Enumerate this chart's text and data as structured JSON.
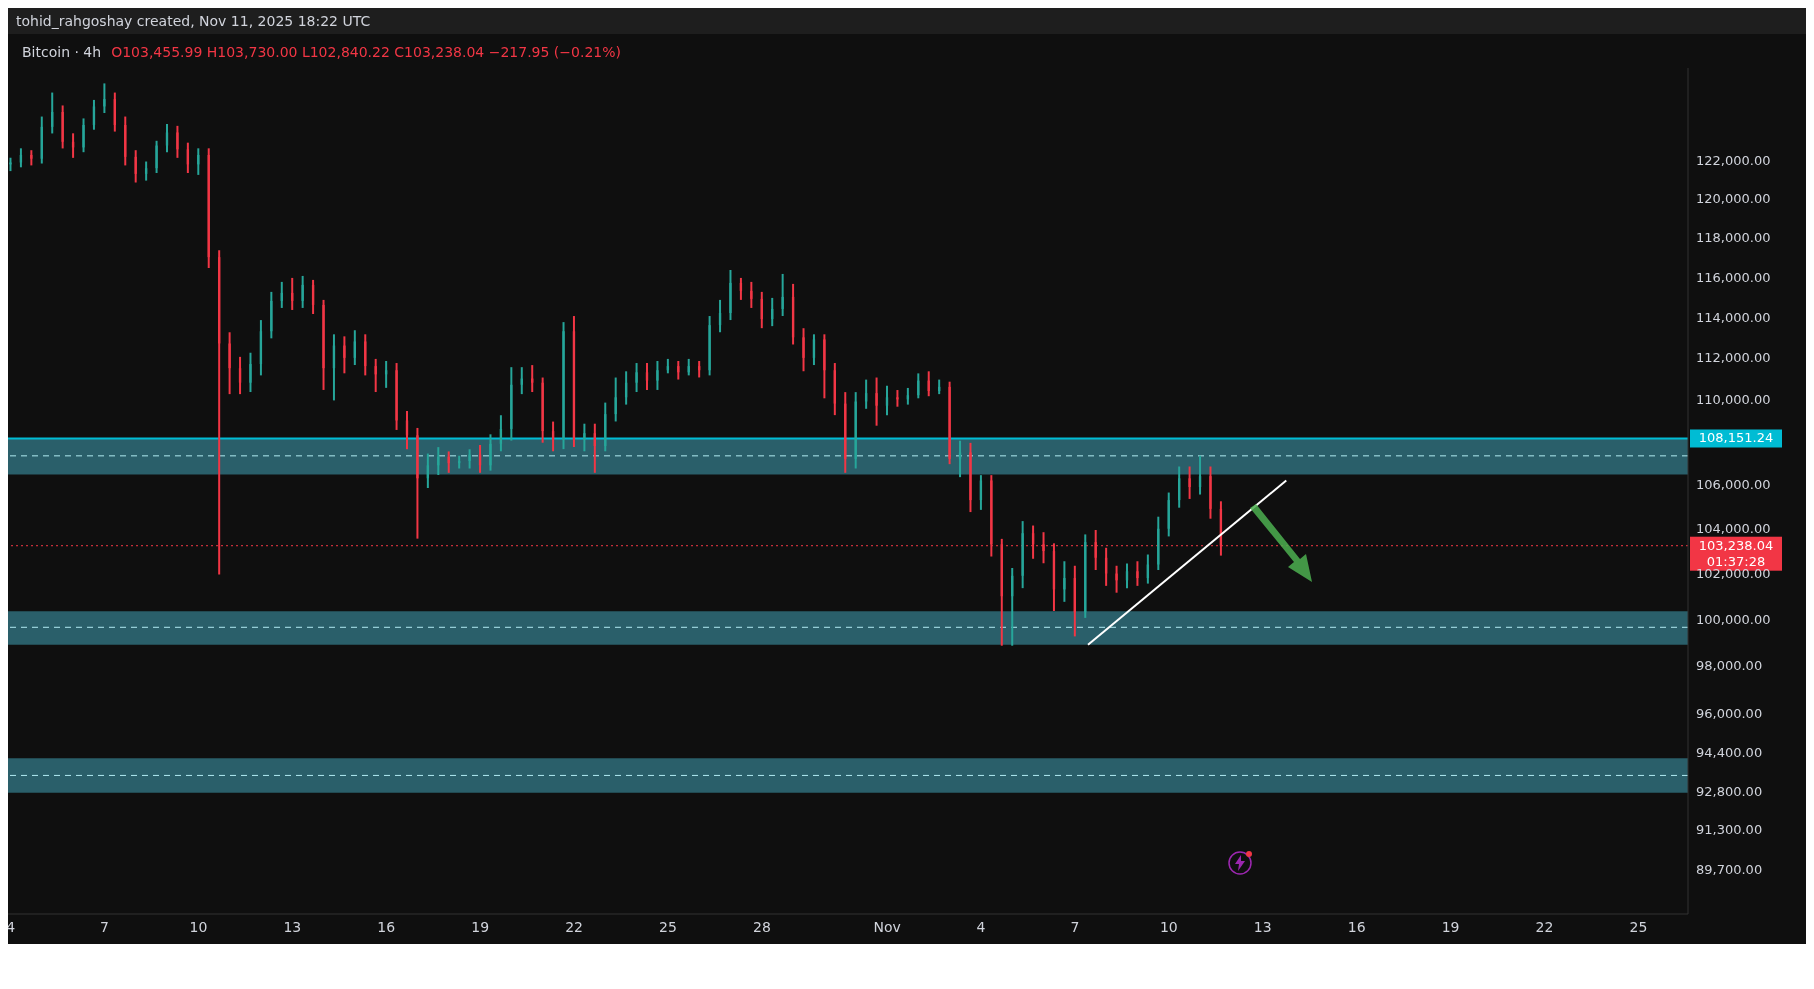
{
  "chart_data": {
    "type": "candlestick",
    "title": "Bitcoin · 4h",
    "subtitle": "O103,455.99 H103,730.00 L102,840.22 C103,238.04 −217.95 (−0.21%)",
    "annotations": [
      "tohid_rahgoshay created, Nov 11, 2025 18:22 UTC",
      "01:37:28"
    ],
    "x": [
      "2025-10-04T00:00",
      "2025-10-04T08:00",
      "2025-10-04T16:00",
      "2025-10-05T00:00",
      "2025-10-05T08:00",
      "2025-10-05T16:00",
      "2025-10-06T00:00",
      "2025-10-06T08:00",
      "2025-10-06T16:00",
      "2025-10-07T00:00",
      "2025-10-07T08:00",
      "2025-10-07T16:00",
      "2025-10-08T00:00",
      "2025-10-08T08:00",
      "2025-10-08T16:00",
      "2025-10-09T00:00",
      "2025-10-09T08:00",
      "2025-10-09T16:00",
      "2025-10-10T00:00",
      "2025-10-10T08:00",
      "2025-10-10T16:00",
      "2025-10-11T00:00",
      "2025-10-11T08:00",
      "2025-10-11T16:00",
      "2025-10-12T00:00",
      "2025-10-12T08:00",
      "2025-10-12T16:00",
      "2025-10-13T00:00",
      "2025-10-13T08:00",
      "2025-10-13T16:00",
      "2025-10-14T00:00",
      "2025-10-14T08:00",
      "2025-10-14T16:00",
      "2025-10-15T00:00",
      "2025-10-15T08:00",
      "2025-10-15T16:00",
      "2025-10-16T00:00",
      "2025-10-16T08:00",
      "2025-10-16T16:00",
      "2025-10-17T00:00",
      "2025-10-17T08:00",
      "2025-10-17T16:00",
      "2025-10-18T00:00",
      "2025-10-18T08:00",
      "2025-10-18T16:00",
      "2025-10-19T00:00",
      "2025-10-19T08:00",
      "2025-10-19T16:00",
      "2025-10-20T00:00",
      "2025-10-20T08:00",
      "2025-10-20T16:00",
      "2025-10-21T00:00",
      "2025-10-21T08:00",
      "2025-10-21T16:00",
      "2025-10-22T00:00",
      "2025-10-22T08:00",
      "2025-10-22T16:00",
      "2025-10-23T00:00",
      "2025-10-23T08:00",
      "2025-10-23T16:00",
      "2025-10-24T00:00",
      "2025-10-24T08:00",
      "2025-10-24T16:00",
      "2025-10-25T00:00",
      "2025-10-25T08:00",
      "2025-10-25T16:00",
      "2025-10-26T00:00",
      "2025-10-26T08:00",
      "2025-10-26T16:00",
      "2025-10-27T00:00",
      "2025-10-27T08:00",
      "2025-10-27T16:00",
      "2025-10-28T00:00",
      "2025-10-28T08:00",
      "2025-10-28T16:00",
      "2025-10-29T00:00",
      "2025-10-29T08:00",
      "2025-10-29T16:00",
      "2025-10-30T00:00",
      "2025-10-30T08:00",
      "2025-10-30T16:00",
      "2025-10-31T00:00",
      "2025-10-31T08:00",
      "2025-10-31T16:00",
      "2025-11-01T00:00",
      "2025-11-01T08:00",
      "2025-11-01T16:00",
      "2025-11-02T00:00",
      "2025-11-02T08:00",
      "2025-11-02T16:00",
      "2025-11-03T00:00",
      "2025-11-03T08:00",
      "2025-11-03T16:00",
      "2025-11-04T00:00",
      "2025-11-04T08:00",
      "2025-11-04T16:00",
      "2025-11-05T00:00",
      "2025-11-05T08:00",
      "2025-11-05T16:00",
      "2025-11-06T00:00",
      "2025-11-06T08:00",
      "2025-11-06T16:00",
      "2025-11-07T00:00",
      "2025-11-07T08:00",
      "2025-11-07T16:00",
      "2025-11-08T00:00",
      "2025-11-08T08:00",
      "2025-11-08T16:00",
      "2025-11-09T00:00",
      "2025-11-09T08:00",
      "2025-11-09T16:00",
      "2025-11-10T00:00",
      "2025-11-10T08:00",
      "2025-11-10T16:00",
      "2025-11-11T00:00",
      "2025-11-11T08:00",
      "2025-11-11T16:00"
    ],
    "ohlc": [
      [
        121800,
        122100,
        121500,
        121900
      ],
      [
        121900,
        122600,
        121700,
        122300
      ],
      [
        122300,
        122500,
        121800,
        122100
      ],
      [
        122100,
        124300,
        121900,
        123800
      ],
      [
        123800,
        125600,
        123500,
        124600
      ],
      [
        124600,
        124900,
        122700,
        123000
      ],
      [
        123000,
        123400,
        122200,
        122700
      ],
      [
        122700,
        124200,
        122500,
        123900
      ],
      [
        123900,
        125200,
        123700,
        124900
      ],
      [
        124900,
        126100,
        124600,
        125300
      ],
      [
        125300,
        125600,
        123600,
        123900
      ],
      [
        123900,
        124300,
        121800,
        122200
      ],
      [
        122200,
        122500,
        120900,
        121300
      ],
      [
        121300,
        121900,
        121000,
        121600
      ],
      [
        121600,
        123000,
        121400,
        122800
      ],
      [
        122800,
        123900,
        122500,
        123500
      ],
      [
        123500,
        123800,
        122200,
        122600
      ],
      [
        122600,
        122900,
        121400,
        121800
      ],
      [
        121800,
        122600,
        121300,
        122300
      ],
      [
        122300,
        122600,
        116500,
        117000
      ],
      [
        117000,
        117300,
        102000,
        112700
      ],
      [
        112700,
        113200,
        110300,
        111500
      ],
      [
        111500,
        112000,
        110300,
        110800
      ],
      [
        110800,
        112200,
        110400,
        111700
      ],
      [
        111700,
        113800,
        111200,
        113300
      ],
      [
        113300,
        115200,
        113000,
        114800
      ],
      [
        114800,
        115700,
        114500,
        115200
      ],
      [
        115200,
        115900,
        114400,
        114800
      ],
      [
        114800,
        116000,
        114500,
        115600
      ],
      [
        115600,
        115800,
        114200,
        114600
      ],
      [
        114600,
        114800,
        110500,
        111500
      ],
      [
        111500,
        113100,
        110000,
        112600
      ],
      [
        112600,
        113000,
        111300,
        112000
      ],
      [
        112000,
        113300,
        111700,
        112800
      ],
      [
        112800,
        113100,
        111200,
        111600
      ],
      [
        111600,
        111900,
        110400,
        111200
      ],
      [
        111200,
        111800,
        110600,
        111400
      ],
      [
        111400,
        111700,
        108600,
        109000
      ],
      [
        109000,
        109400,
        107700,
        108300
      ],
      [
        108300,
        108600,
        103600,
        106300
      ],
      [
        106300,
        107400,
        105900,
        106900
      ],
      [
        106900,
        107700,
        106500,
        107300
      ],
      [
        107300,
        107500,
        106600,
        107000
      ],
      [
        107000,
        107300,
        106800,
        107100
      ],
      [
        107100,
        107600,
        106800,
        107400
      ],
      [
        107400,
        107800,
        106600,
        106900
      ],
      [
        106900,
        108300,
        106700,
        107900
      ],
      [
        107900,
        109200,
        107600,
        108600
      ],
      [
        108600,
        111500,
        108100,
        110700
      ],
      [
        110700,
        111500,
        110300,
        111000
      ],
      [
        111000,
        111600,
        110400,
        110800
      ],
      [
        110800,
        111000,
        108000,
        108500
      ],
      [
        108500,
        108900,
        107600,
        108100
      ],
      [
        108100,
        113700,
        107700,
        113300
      ],
      [
        113300,
        114000,
        107800,
        108100
      ],
      [
        108100,
        108800,
        107600,
        108400
      ],
      [
        108400,
        108800,
        106600,
        107800
      ],
      [
        107800,
        109800,
        107600,
        109300
      ],
      [
        109300,
        111000,
        109000,
        110100
      ],
      [
        110100,
        111300,
        109800,
        110800
      ],
      [
        110800,
        111700,
        110400,
        111300
      ],
      [
        111300,
        111700,
        110500,
        110900
      ],
      [
        110900,
        111800,
        110500,
        111400
      ],
      [
        111400,
        111900,
        111300,
        111600
      ],
      [
        111600,
        111800,
        111000,
        111300
      ],
      [
        111300,
        111900,
        111200,
        111600
      ],
      [
        111600,
        111800,
        111100,
        111400
      ],
      [
        111400,
        114000,
        111200,
        113600
      ],
      [
        113600,
        114800,
        113300,
        114200
      ],
      [
        114200,
        116300,
        113900,
        115700
      ],
      [
        115700,
        115900,
        114900,
        115300
      ],
      [
        115300,
        115700,
        114500,
        114900
      ],
      [
        114900,
        115200,
        113500,
        113900
      ],
      [
        113900,
        114900,
        113600,
        114400
      ],
      [
        114400,
        116100,
        114100,
        115000
      ],
      [
        115000,
        115600,
        112700,
        113000
      ],
      [
        113000,
        113400,
        111400,
        112000
      ],
      [
        112000,
        113100,
        111700,
        112900
      ],
      [
        112900,
        113100,
        110100,
        111400
      ],
      [
        111400,
        111700,
        109300,
        109800
      ],
      [
        109800,
        110300,
        106600,
        107200
      ],
      [
        107200,
        110300,
        106800,
        109900
      ],
      [
        109900,
        110900,
        109600,
        110300
      ],
      [
        110300,
        111000,
        108800,
        109700
      ],
      [
        109700,
        110600,
        109300,
        110100
      ],
      [
        110100,
        110400,
        109700,
        110000
      ],
      [
        110000,
        110500,
        109800,
        110200
      ],
      [
        110200,
        111200,
        110100,
        110900
      ],
      [
        110900,
        111300,
        110200,
        110400
      ],
      [
        110400,
        110900,
        110300,
        110600
      ],
      [
        110600,
        110800,
        107000,
        107200
      ],
      [
        107200,
        108000,
        106400,
        107500
      ],
      [
        107500,
        107900,
        104800,
        105300
      ],
      [
        105300,
        106400,
        104900,
        106200
      ],
      [
        106200,
        106400,
        102800,
        103300
      ],
      [
        103300,
        103500,
        98900,
        101000
      ],
      [
        101000,
        102200,
        98900,
        101900
      ],
      [
        101900,
        104300,
        101400,
        103800
      ],
      [
        103800,
        104100,
        102700,
        103300
      ],
      [
        103300,
        103800,
        102500,
        103000
      ],
      [
        103000,
        103300,
        100400,
        101300
      ],
      [
        101300,
        102500,
        100800,
        101800
      ],
      [
        101800,
        102300,
        99300,
        100300
      ],
      [
        100300,
        103700,
        100100,
        103400
      ],
      [
        103400,
        103900,
        102200,
        102700
      ],
      [
        102700,
        103100,
        101500,
        102000
      ],
      [
        102000,
        102300,
        101200,
        101700
      ],
      [
        101700,
        102400,
        101400,
        102100
      ],
      [
        102100,
        102500,
        101500,
        101800
      ],
      [
        101800,
        102800,
        101600,
        102400
      ],
      [
        102400,
        104500,
        102200,
        104000
      ],
      [
        104000,
        105600,
        103700,
        105300
      ],
      [
        105300,
        106800,
        105000,
        106300
      ],
      [
        106300,
        106800,
        105400,
        105900
      ],
      [
        105900,
        107300,
        105600,
        106400
      ],
      [
        106400,
        106800,
        104500,
        104900
      ],
      [
        104900,
        105200,
        102840.22,
        103238.04
      ]
    ],
    "series": [
      {
        "type": "line",
        "x": [
          "2025-11-07T10:00",
          "2025-11-13T18:00"
        ],
        "values": [
          98900,
          106200
        ],
        "color": "#ffffff"
      }
    ],
    "log": true,
    "ylim": [
      88000,
      127000
    ],
    "yticks": [
      {
        "value": 89700,
        "label": "89,700.00"
      },
      {
        "value": 91300,
        "label": "91,300.00"
      },
      {
        "value": 92800,
        "label": "92,800.00"
      },
      {
        "value": 94400,
        "label": "94,400.00"
      },
      {
        "value": 96000,
        "label": "96,000.00"
      },
      {
        "value": 98000,
        "label": "98,000.00"
      },
      {
        "value": 100000,
        "label": "100,000.00"
      },
      {
        "value": 102000,
        "label": "102,000.00"
      },
      {
        "value": 104000,
        "label": "104,000.00"
      },
      {
        "value": 106000,
        "label": "106,000.00"
      },
      {
        "value": 110000,
        "label": "110,000.00"
      },
      {
        "value": 112000,
        "label": "112,000.00"
      },
      {
        "value": 114000,
        "label": "114,000.00"
      },
      {
        "value": 116000,
        "label": "116,000.00"
      },
      {
        "value": 118000,
        "label": "118,000.00"
      },
      {
        "value": 120000,
        "label": "120,000.00"
      },
      {
        "value": 122000,
        "label": "122,000.00"
      }
    ],
    "xlim": [
      "2025-10-03T22:00",
      "2025-11-26T14:00"
    ],
    "xticks": [
      {
        "value": "2025-10-04",
        "label": "4"
      },
      {
        "value": "2025-10-07",
        "label": "7"
      },
      {
        "value": "2025-10-10",
        "label": "10"
      },
      {
        "value": "2025-10-13",
        "label": "13"
      },
      {
        "value": "2025-10-16",
        "label": "16"
      },
      {
        "value": "2025-10-19",
        "label": "19"
      },
      {
        "value": "2025-10-22",
        "label": "22"
      },
      {
        "value": "2025-10-25",
        "label": "25"
      },
      {
        "value": "2025-10-28",
        "label": "28"
      },
      {
        "value": "2025-11-01",
        "label": "Nov"
      },
      {
        "value": "2025-11-04",
        "label": "4"
      },
      {
        "value": "2025-11-07",
        "label": "7"
      },
      {
        "value": "2025-11-10",
        "label": "10"
      },
      {
        "value": "2025-11-13",
        "label": "13"
      },
      {
        "value": "2025-11-16",
        "label": "16"
      },
      {
        "value": "2025-11-19",
        "label": "19"
      },
      {
        "value": "2025-11-22",
        "label": "22"
      },
      {
        "value": "2025-11-25",
        "label": "25"
      }
    ],
    "bands": [
      {
        "axis": "y",
        "from": 106480,
        "to": 108151.24,
        "color": "#2a5f6a"
      },
      {
        "axis": "y",
        "from": 98900,
        "to": 100350,
        "color": "#2a5f6a"
      },
      {
        "axis": "y",
        "from": 92750,
        "to": 94150,
        "color": "#2a5f6a"
      }
    ],
    "ref_lines": [
      {
        "axis": "y",
        "value": 107340,
        "line_style": "dashed",
        "color": "#b2ebf2"
      },
      {
        "axis": "y",
        "value": 99650,
        "line_style": "dashed",
        "color": "#b2ebf2"
      },
      {
        "axis": "y",
        "value": 93450,
        "line_style": "dashed",
        "color": "#b2ebf2"
      },
      {
        "axis": "y",
        "value": 108151.24,
        "label": "108,151.24",
        "line_style": "solid",
        "color": "#00bcd4"
      },
      {
        "axis": "y",
        "value": 103238.04,
        "label": "103,238.04",
        "line_style": "dotted",
        "color": "#f23645"
      }
    ],
    "tick_labels": true
  }
}
